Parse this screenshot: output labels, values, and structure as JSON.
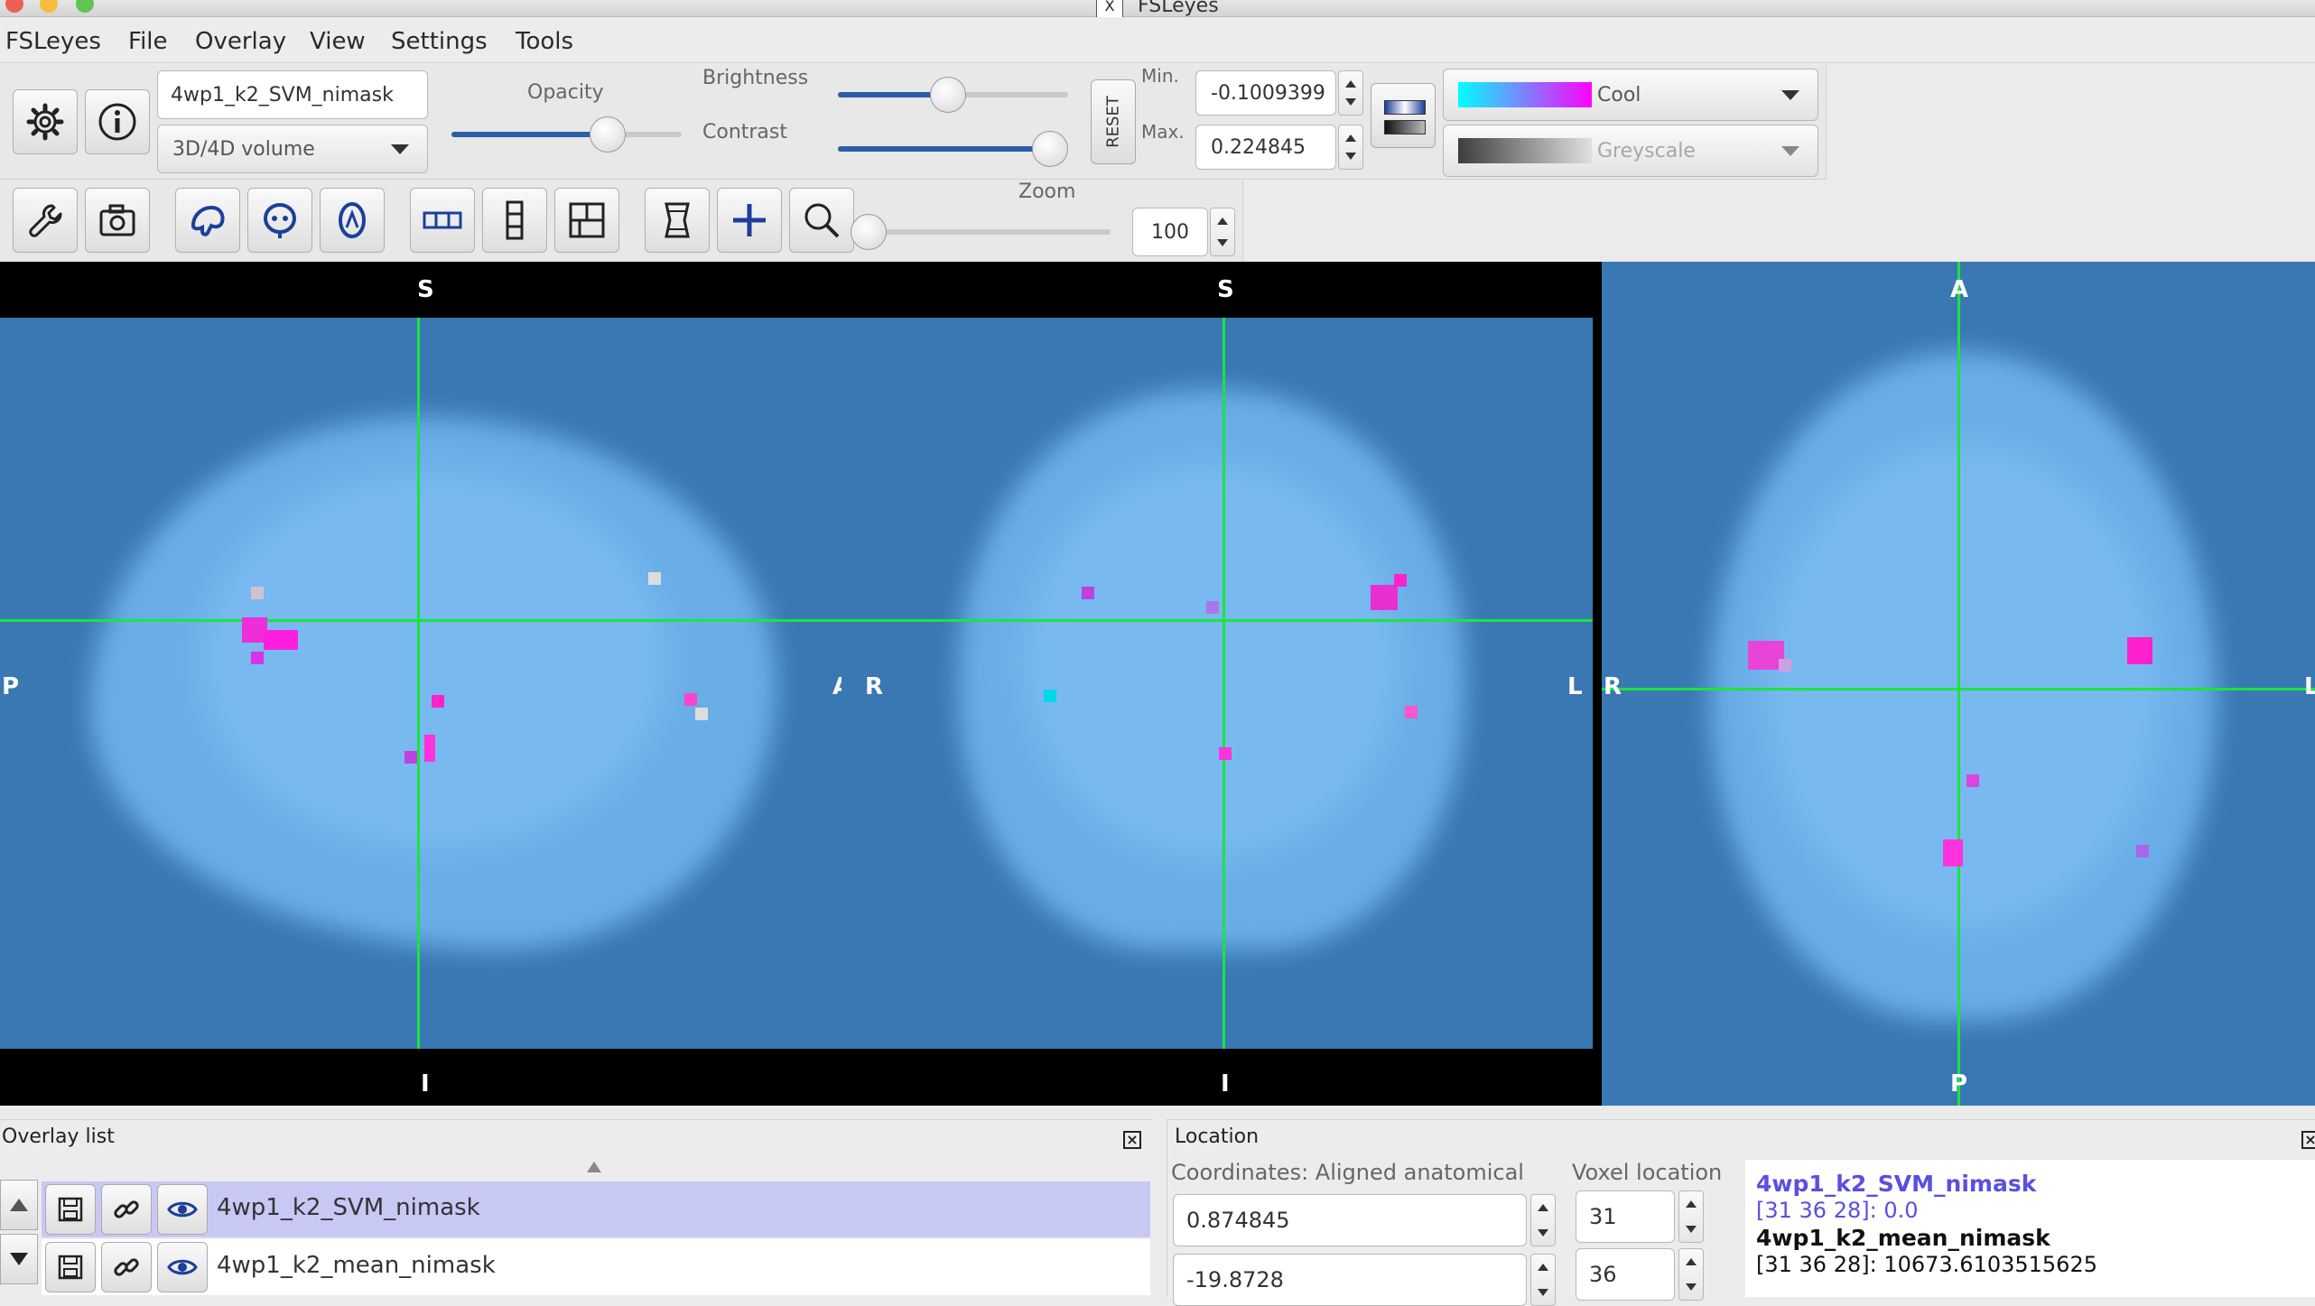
{
  "window": {
    "title": "FSLeyes"
  },
  "menu": {
    "items": [
      "FSLeyes",
      "File",
      "Overlay",
      "View",
      "Settings",
      "Tools"
    ]
  },
  "overlay_toolbar": {
    "overlay_name": "4wp1_k2_SVM_nimask",
    "overlay_type": "3D/4D volume",
    "opacity_label": "Opacity",
    "opacity_value": 0.68,
    "brightness_label": "Brightness",
    "brightness_value": 0.48,
    "contrast_label": "Contrast",
    "contrast_value": 0.92,
    "reset_label": "RESET",
    "min_label": "Min.",
    "min_value": "-0.1009399",
    "max_label": "Max.",
    "max_value": "0.224845",
    "colormap_primary": "Cool",
    "colormap_secondary": "Greyscale"
  },
  "ortho_toolbar": {
    "zoom_label": "Zoom",
    "zoom_value": "100",
    "zoom_slider_value": 0.0
  },
  "views": {
    "sagittal": {
      "top": "S",
      "bottom": "I",
      "left": "P",
      "right": "A"
    },
    "coronal": {
      "top": "S",
      "bottom": "I",
      "left": "R",
      "right": "L"
    },
    "axial": {
      "top": "A",
      "bottom": "P",
      "left": "R",
      "right": "L"
    }
  },
  "overlay_list": {
    "title": "Overlay list",
    "items": [
      {
        "name": "4wp1_k2_SVM_nimask",
        "selected": true
      },
      {
        "name": "4wp1_k2_mean_nimask",
        "selected": false
      }
    ]
  },
  "location": {
    "title": "Location",
    "coords_label": "Coordinates: Aligned anatomical",
    "voxel_label": "Voxel location",
    "coord_x": "0.874845",
    "coord_y": "-19.8728",
    "voxel_x": "31",
    "voxel_y": "36",
    "info": [
      {
        "name": "4wp1_k2_SVM_nimask",
        "value": "[31 36 28]: 0.0"
      },
      {
        "name": "4wp1_k2_mean_nimask",
        "value": "[31 36 28]: 10673.6103515625"
      }
    ]
  },
  "colors": {
    "accent": "#2a5fa8",
    "crosshair": "#19e63a",
    "brain_bg": "#3a78b4",
    "selected_row": "#c8c8f4",
    "info_highlight": "#5a4fe0"
  }
}
